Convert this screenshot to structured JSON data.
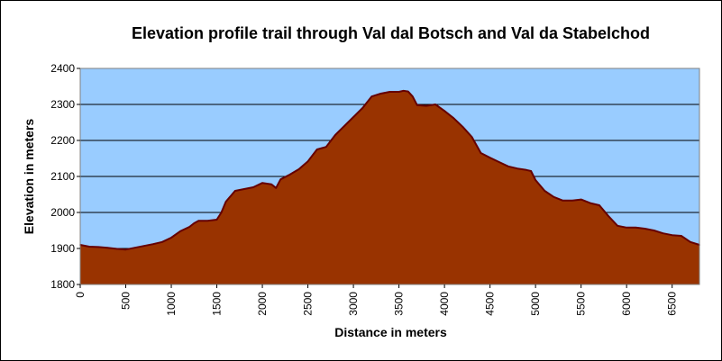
{
  "chart_data": {
    "type": "area",
    "title": "Elevation profile trail through Val dal Botsch and Val da Stabelchod",
    "xlabel": "Distance in meters",
    "ylabel": "Elevation in meters",
    "xlim": [
      0,
      6800
    ],
    "ylim": [
      1800,
      2400
    ],
    "x_ticks": [
      0,
      500,
      1000,
      1500,
      2000,
      2500,
      3000,
      3500,
      4000,
      4500,
      5000,
      5500,
      6000,
      6500
    ],
    "y_ticks": [
      1800,
      1900,
      2000,
      2100,
      2200,
      2300,
      2400
    ],
    "grid": "horizontal",
    "legend": "none",
    "colors": {
      "plot_background": "#99ccff",
      "fill": "#993300",
      "outline": "#660000",
      "gridline": "#000000"
    },
    "series": [
      {
        "x": [
          0,
          100,
          200,
          300,
          400,
          500,
          600,
          700,
          800,
          900,
          1000,
          1100,
          1200,
          1250,
          1300,
          1400,
          1500,
          1550,
          1600,
          1700,
          1800,
          1900,
          2000,
          2100,
          2150,
          2200,
          2300,
          2400,
          2500,
          2600,
          2700,
          2800,
          2900,
          3000,
          3100,
          3200,
          3300,
          3400,
          3500,
          3550,
          3600,
          3650,
          3700,
          3800,
          3900,
          4000,
          4100,
          4200,
          4300,
          4400,
          4500,
          4600,
          4700,
          4800,
          4900,
          4950,
          5000,
          5100,
          5200,
          5300,
          5400,
          5500,
          5600,
          5700,
          5800,
          5900,
          6000,
          6100,
          6200,
          6300,
          6400,
          6500,
          6600,
          6700,
          6800
        ],
        "values": [
          1910,
          1905,
          1904,
          1902,
          1899,
          1897,
          1902,
          1907,
          1912,
          1918,
          1930,
          1948,
          1960,
          1970,
          1977,
          1977,
          1980,
          2000,
          2030,
          2060,
          2065,
          2070,
          2082,
          2078,
          2068,
          2092,
          2105,
          2120,
          2142,
          2175,
          2182,
          2215,
          2240,
          2265,
          2290,
          2322,
          2330,
          2335,
          2335,
          2338,
          2336,
          2322,
          2298,
          2296,
          2300,
          2282,
          2262,
          2238,
          2210,
          2165,
          2152,
          2140,
          2128,
          2122,
          2118,
          2115,
          2090,
          2060,
          2043,
          2033,
          2033,
          2036,
          2026,
          2020,
          1990,
          1963,
          1958,
          1958,
          1955,
          1950,
          1942,
          1937,
          1935,
          1918,
          1910
        ]
      }
    ]
  }
}
